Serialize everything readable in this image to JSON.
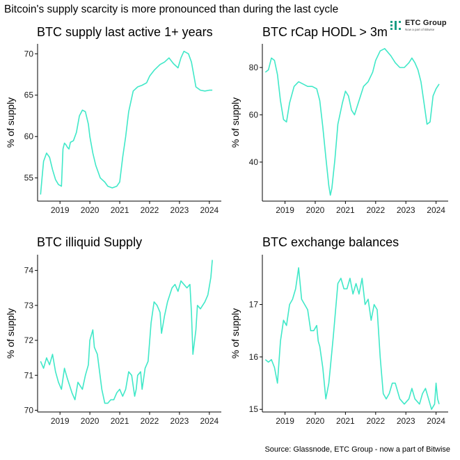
{
  "title": "Bitcoin's supply scarcity is more pronounced than during the last cycle",
  "source": "Source: Glassnode, ETC Group - now a part of Bitwise",
  "logo": {
    "name": "ETC Group",
    "tagline": "Now a part of Bitwise",
    "color": "#1a9e84"
  },
  "line_color": "#40e8c8",
  "chart_data": [
    {
      "type": "line",
      "title": "BTC supply last active 1+ years",
      "ylabel": "% of supply",
      "xlim": [
        2018.25,
        2024.4
      ],
      "ylim": [
        52.2,
        71.2
      ],
      "xticks": [
        2019,
        2020,
        2021,
        2022,
        2023,
        2024
      ],
      "yticks": [
        55,
        60,
        65,
        70
      ],
      "x": [
        2018.35,
        2018.4,
        2018.45,
        2018.55,
        2018.65,
        2018.75,
        2018.85,
        2018.95,
        2019.05,
        2019.1,
        2019.15,
        2019.2,
        2019.25,
        2019.3,
        2019.35,
        2019.45,
        2019.55,
        2019.65,
        2019.75,
        2019.85,
        2019.95,
        2020.0,
        2020.1,
        2020.2,
        2020.35,
        2020.5,
        2020.6,
        2020.75,
        2020.9,
        2021.0,
        2021.1,
        2021.2,
        2021.3,
        2021.45,
        2021.6,
        2021.75,
        2021.9,
        2022.0,
        2022.15,
        2022.35,
        2022.5,
        2022.65,
        2022.8,
        2022.95,
        2023.05,
        2023.15,
        2023.3,
        2023.4,
        2023.5,
        2023.55,
        2023.7,
        2023.85,
        2024.0,
        2024.1
      ],
      "y": [
        53.0,
        55.0,
        57.0,
        58.0,
        57.5,
        56.0,
        54.8,
        54.2,
        54.0,
        58.5,
        59.2,
        59.0,
        58.7,
        58.5,
        59.3,
        59.5,
        60.5,
        62.5,
        63.2,
        63.0,
        61.5,
        60.0,
        58.0,
        56.5,
        55.0,
        54.5,
        54.0,
        53.8,
        54.0,
        54.5,
        57.5,
        60.0,
        63.0,
        65.5,
        66.0,
        66.2,
        66.5,
        67.3,
        68.0,
        68.7,
        69.0,
        69.5,
        68.8,
        68.3,
        69.5,
        70.3,
        70.0,
        69.0,
        67.0,
        66.0,
        65.6,
        65.5,
        65.6,
        65.6
      ]
    },
    {
      "type": "line",
      "title": "BTC rCap HODL > 3m",
      "ylabel": "% of supply",
      "xlim": [
        2018.25,
        2024.4
      ],
      "ylim": [
        23.5,
        90
      ],
      "xticks": [
        2019,
        2020,
        2021,
        2022,
        2023,
        2024
      ],
      "yticks": [
        40,
        60,
        80
      ],
      "x": [
        2018.35,
        2018.45,
        2018.55,
        2018.65,
        2018.75,
        2018.85,
        2018.95,
        2019.05,
        2019.15,
        2019.3,
        2019.45,
        2019.6,
        2019.75,
        2019.9,
        2020.05,
        2020.15,
        2020.25,
        2020.35,
        2020.45,
        2020.5,
        2020.55,
        2020.65,
        2020.75,
        2020.9,
        2021.0,
        2021.1,
        2021.2,
        2021.3,
        2021.45,
        2021.6,
        2021.75,
        2021.9,
        2022.0,
        2022.15,
        2022.3,
        2022.5,
        2022.65,
        2022.8,
        2022.95,
        2023.1,
        2023.2,
        2023.3,
        2023.4,
        2023.5,
        2023.6,
        2023.7,
        2023.8,
        2023.9,
        2024.0,
        2024.1
      ],
      "y": [
        78,
        79,
        84,
        83,
        77,
        66,
        58,
        57,
        65,
        72,
        74,
        73,
        72,
        72,
        71,
        66,
        55,
        42,
        30,
        26,
        29,
        41,
        56,
        65,
        70,
        68,
        62,
        60,
        66,
        72,
        74,
        78,
        83,
        87,
        88,
        85,
        82,
        80,
        80,
        82,
        84,
        82,
        79,
        74,
        65,
        56,
        57,
        68,
        71,
        73
      ]
    },
    {
      "type": "line",
      "title": "BTC illiquid Supply",
      "ylabel": "% of supply",
      "xlim": [
        2018.25,
        2024.4
      ],
      "ylim": [
        69.95,
        74.45
      ],
      "xticks": [
        2019,
        2020,
        2021,
        2022,
        2023,
        2024
      ],
      "yticks": [
        70,
        71,
        72,
        73,
        74
      ],
      "x": [
        2018.35,
        2018.45,
        2018.55,
        2018.65,
        2018.75,
        2018.85,
        2018.95,
        2019.05,
        2019.15,
        2019.25,
        2019.4,
        2019.5,
        2019.6,
        2019.75,
        2019.85,
        2019.95,
        2020.0,
        2020.1,
        2020.15,
        2020.25,
        2020.4,
        2020.5,
        2020.6,
        2020.7,
        2020.8,
        2020.9,
        2021.0,
        2021.1,
        2021.2,
        2021.3,
        2021.4,
        2021.5,
        2021.55,
        2021.6,
        2021.7,
        2021.75,
        2021.85,
        2021.95,
        2022.05,
        2022.15,
        2022.25,
        2022.35,
        2022.4,
        2022.5,
        2022.6,
        2022.75,
        2022.85,
        2022.95,
        2023.05,
        2023.15,
        2023.25,
        2023.35,
        2023.4,
        2023.45,
        2023.55,
        2023.6,
        2023.7,
        2023.85,
        2023.95,
        2024.05,
        2024.1
      ],
      "y": [
        71.4,
        71.2,
        71.5,
        71.3,
        71.6,
        71.1,
        70.8,
        70.6,
        71.2,
        70.9,
        70.5,
        70.3,
        70.8,
        70.6,
        71.0,
        71.3,
        72.0,
        72.3,
        71.8,
        71.6,
        70.6,
        70.2,
        70.2,
        70.3,
        70.3,
        70.5,
        70.6,
        70.4,
        70.6,
        71.1,
        71.0,
        70.4,
        70.6,
        71.0,
        71.1,
        70.6,
        71.2,
        71.4,
        72.5,
        73.1,
        73.0,
        72.8,
        72.2,
        72.7,
        73.1,
        73.5,
        73.6,
        73.4,
        73.7,
        73.6,
        73.5,
        73.6,
        72.8,
        71.6,
        72.3,
        73.0,
        72.9,
        73.1,
        73.3,
        73.8,
        74.3
      ]
    },
    {
      "type": "line",
      "title": "BTC exchange balances",
      "ylabel": "% of supply",
      "xlim": [
        2018.25,
        2024.4
      ],
      "ylim": [
        14.95,
        17.95
      ],
      "xticks": [
        2019,
        2020,
        2021,
        2022,
        2023,
        2024
      ],
      "yticks": [
        15,
        16,
        17
      ],
      "x": [
        2018.35,
        2018.45,
        2018.55,
        2018.65,
        2018.75,
        2018.85,
        2018.95,
        2019.05,
        2019.15,
        2019.25,
        2019.35,
        2019.45,
        2019.55,
        2019.65,
        2019.75,
        2019.85,
        2019.95,
        2020.05,
        2020.1,
        2020.15,
        2020.25,
        2020.35,
        2020.45,
        2020.5,
        2020.6,
        2020.75,
        2020.85,
        2020.95,
        2021.05,
        2021.15,
        2021.25,
        2021.35,
        2021.45,
        2021.55,
        2021.65,
        2021.75,
        2021.85,
        2021.95,
        2022.05,
        2022.15,
        2022.25,
        2022.35,
        2022.45,
        2022.55,
        2022.65,
        2022.8,
        2022.95,
        2023.1,
        2023.2,
        2023.3,
        2023.45,
        2023.55,
        2023.65,
        2023.75,
        2023.85,
        2023.95,
        2024.0,
        2024.05,
        2024.1
      ],
      "y": [
        15.95,
        15.9,
        15.95,
        15.8,
        15.5,
        16.3,
        16.7,
        16.6,
        17.0,
        17.1,
        17.3,
        17.7,
        17.1,
        17.0,
        16.9,
        16.5,
        16.5,
        16.6,
        16.3,
        16.2,
        15.8,
        15.2,
        15.5,
        15.8,
        16.4,
        17.4,
        17.5,
        17.3,
        17.3,
        17.5,
        17.2,
        17.4,
        17.2,
        17.5,
        17.0,
        17.1,
        16.7,
        17.0,
        16.9,
        16.0,
        15.3,
        15.2,
        15.3,
        15.5,
        15.5,
        15.2,
        15.1,
        15.2,
        15.4,
        15.2,
        15.1,
        15.3,
        15.4,
        15.2,
        15.0,
        15.1,
        15.5,
        15.2,
        15.1
      ]
    }
  ]
}
